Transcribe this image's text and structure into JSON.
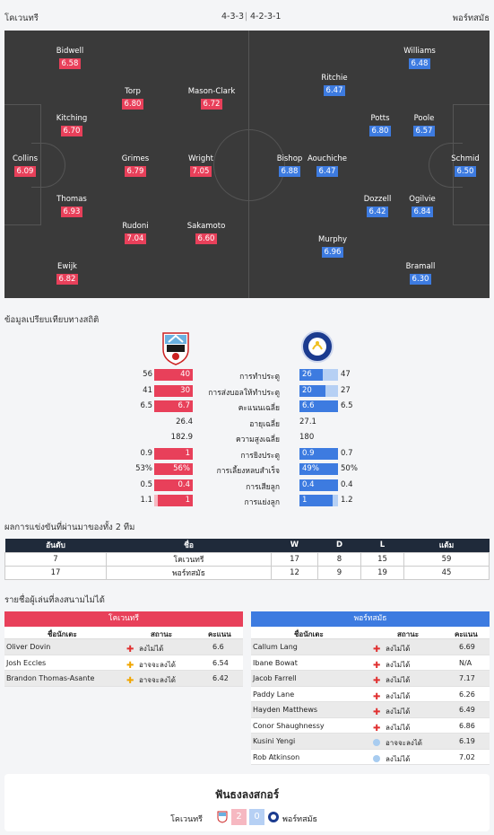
{
  "header": {
    "home_team": "โคเวนทรี",
    "home_formation": "4-3-3",
    "away_formation": "4-2-3-1",
    "away_team": "พอร์ทสมัธ"
  },
  "lineup": {
    "home": [
      {
        "name": "Collins",
        "rating": "6.09"
      },
      {
        "name": "Bidwell",
        "rating": "6.58"
      },
      {
        "name": "Kitching",
        "rating": "6.70"
      },
      {
        "name": "Thomas",
        "rating": "6.93"
      },
      {
        "name": "Ewijk",
        "rating": "6.82"
      },
      {
        "name": "Torp",
        "rating": "6.80"
      },
      {
        "name": "Grimes",
        "rating": "6.79"
      },
      {
        "name": "Rudoni",
        "rating": "7.04"
      },
      {
        "name": "Mason-Clark",
        "rating": "6.72"
      },
      {
        "name": "Wright",
        "rating": "7.05"
      },
      {
        "name": "Sakamoto",
        "rating": "6.60"
      }
    ],
    "away": [
      {
        "name": "Schmid",
        "rating": "6.50"
      },
      {
        "name": "Williams",
        "rating": "6.48"
      },
      {
        "name": "Poole",
        "rating": "6.57"
      },
      {
        "name": "Ogilvie",
        "rating": "6.84"
      },
      {
        "name": "Bramall",
        "rating": "6.30"
      },
      {
        "name": "Potts",
        "rating": "6.80"
      },
      {
        "name": "Dozzell",
        "rating": "6.42"
      },
      {
        "name": "Ritchie",
        "rating": "6.47"
      },
      {
        "name": "Aouchiche",
        "rating": "6.47"
      },
      {
        "name": "Murphy",
        "rating": "6.96"
      },
      {
        "name": "Bishop",
        "rating": "6.88"
      }
    ]
  },
  "stats": {
    "title": "ข้อมูลเปรียบเทียบทางสถิติ",
    "rows": [
      {
        "label": "การทำประตู",
        "home_total": "56",
        "home": "40",
        "away": "26",
        "away_total": "47",
        "home_frac": 1.0,
        "away_frac": 0.6
      },
      {
        "label": "การส่งบอลให้ทำประตู",
        "home_total": "41",
        "home": "30",
        "away": "20",
        "away_total": "27",
        "home_frac": 1.0,
        "away_frac": 0.67
      },
      {
        "label": "คะแนนเฉลี่ย",
        "home_total": "6.5",
        "home": "6.7",
        "away": "6.6",
        "away_total": "6.5",
        "home_frac": 1.0,
        "away_frac": 1.0
      },
      {
        "label": "อายุเฉลี่ย",
        "home_center": "26.4",
        "away_center": "27.1"
      },
      {
        "label": "ความสูงเฉลี่ย",
        "home_center": "182.9",
        "away_center": "180"
      },
      {
        "label": "การยิงประตู",
        "home_total": "0.9",
        "home": "1",
        "away": "0.9",
        "away_total": "0.7",
        "home_frac": 1.0,
        "away_frac": 1.0
      },
      {
        "label": "การเลี้ยงหลบสำเร็จ",
        "home_total": "53%",
        "home": "56%",
        "away": "49%",
        "away_total": "50%",
        "home_frac": 1.0,
        "away_frac": 1.0
      },
      {
        "label": "การเสียลูก",
        "home_total": "0.5",
        "home": "0.4",
        "away": "0.4",
        "away_total": "0.4",
        "home_frac": 1.0,
        "away_frac": 1.0
      },
      {
        "label": "การแย่งลูก",
        "home_total": "1.1",
        "home": "1",
        "away": "1",
        "away_total": "1.2",
        "home_frac": 0.9,
        "away_frac": 0.85
      }
    ]
  },
  "standings": {
    "title": "ผลการแข่งขันที่ผ่านมาของทั้ง 2 ทีม",
    "columns": [
      "อันดับ",
      "ชื่อ",
      "W",
      "D",
      "L",
      "แต้ม"
    ],
    "rows": [
      [
        "7",
        "โคเวนทรี",
        "17",
        "8",
        "15",
        "59"
      ],
      [
        "17",
        "พอร์ทสมัธ",
        "12",
        "9",
        "19",
        "45"
      ]
    ]
  },
  "injuries": {
    "title": "รายชื่อผู้เล่นที่ลงสนามไม่ได้",
    "columns": {
      "name": "ชื่อนักเตะ",
      "status": "สถานะ",
      "score": "คะแนน"
    },
    "home": {
      "team": "โคเวนทรี",
      "players": [
        {
          "name": "Oliver Dovin",
          "status": "ลงไม่ได้",
          "score": "6.6",
          "icon": "cross-icon"
        },
        {
          "name": "Josh Eccles",
          "status": "อาจจะลงได้",
          "score": "6.54",
          "icon": "plus-icon"
        },
        {
          "name": "Brandon Thomas-Asante",
          "status": "อาจจะลงได้",
          "score": "6.42",
          "icon": "plus-icon"
        }
      ]
    },
    "away": {
      "team": "พอร์ทสมัธ",
      "players": [
        {
          "name": "Callum Lang",
          "status": "ลงไม่ได้",
          "score": "6.69",
          "icon": "cross-icon"
        },
        {
          "name": "Ibane Bowat",
          "status": "ลงไม่ได้",
          "score": "N/A",
          "icon": "cross-icon"
        },
        {
          "name": "Jacob Farrell",
          "status": "ลงไม่ได้",
          "score": "7.17",
          "icon": "cross-icon"
        },
        {
          "name": "Paddy Lane",
          "status": "ลงไม่ได้",
          "score": "6.26",
          "icon": "cross-icon"
        },
        {
          "name": "Hayden Matthews",
          "status": "ลงไม่ได้",
          "score": "6.49",
          "icon": "cross-icon"
        },
        {
          "name": "Conor Shaughnessy",
          "status": "ลงไม่ได้",
          "score": "6.86",
          "icon": "cross-icon"
        },
        {
          "name": "Kusini Yengi",
          "status": "อาจจะลงได้",
          "score": "6.19",
          "icon": "dot-icon"
        },
        {
          "name": "Rob Atkinson",
          "status": "ลงไม่ได้",
          "score": "7.02",
          "icon": "dot-icon"
        }
      ]
    }
  },
  "h2h": {
    "title": "ฟันธงลงสกอร์",
    "home_team": "โคเวนทรี",
    "home_score": "2",
    "away_score": "0",
    "away_team": "พอร์ทสมัธ"
  },
  "colors": {
    "home": "#e8405a",
    "away": "#3d7be0",
    "home_light": "#f6b8c1",
    "away_light": "#b6d0f4",
    "pitch": "#3a3a3a",
    "header_dark": "#1f2a3a"
  }
}
